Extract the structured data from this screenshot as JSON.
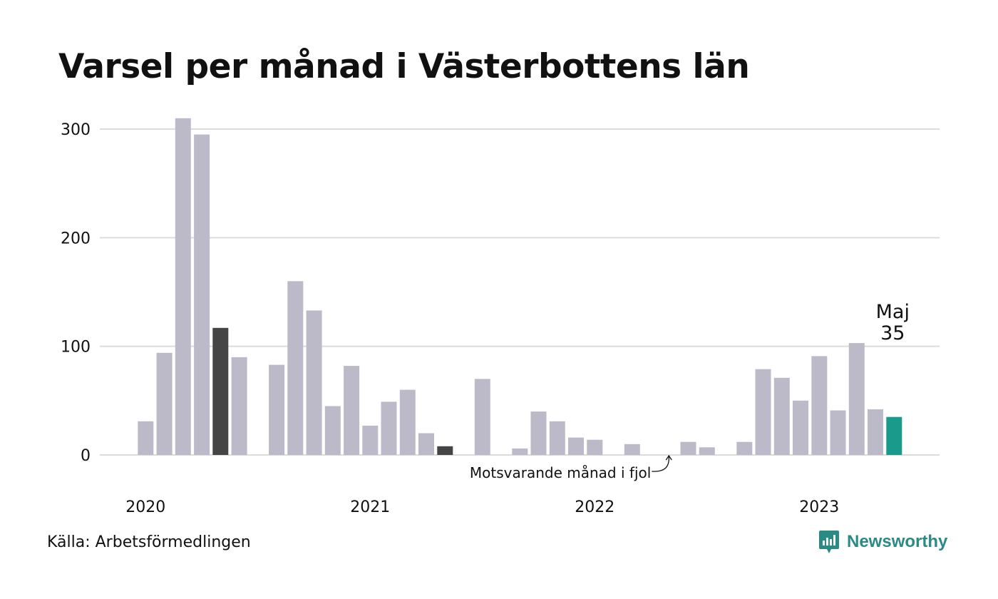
{
  "title": "Varsel per månad i Västerbottens län",
  "source": "Källa: Arbetsförmedlingen",
  "brand": "Newsworthy",
  "colors": {
    "bar": "#bcbac8",
    "bar_previous_year": "#454545",
    "bar_current": "#1a9a8a",
    "grid": "#dcdcdc",
    "brand": "#2a8a84"
  },
  "chart_data": {
    "type": "bar",
    "title": "Varsel per månad i Västerbottens län",
    "xlabel": "",
    "ylabel": "",
    "ylim": [
      0,
      320
    ],
    "yticks": [
      0,
      100,
      200,
      300
    ],
    "grid": true,
    "year_labels": [
      "2020",
      "2021",
      "2022",
      "2023"
    ],
    "categories": [
      "2020-01",
      "2020-02",
      "2020-03",
      "2020-04",
      "2020-05",
      "2020-06",
      "2020-07",
      "2020-08",
      "2020-09",
      "2020-10",
      "2020-11",
      "2020-12",
      "2021-01",
      "2021-02",
      "2021-03",
      "2021-04",
      "2021-05",
      "2021-06",
      "2021-07",
      "2021-08",
      "2021-09",
      "2021-10",
      "2021-11",
      "2021-12",
      "2022-01",
      "2022-02",
      "2022-03",
      "2022-04",
      "2022-05",
      "2022-06",
      "2022-07",
      "2022-08",
      "2022-09",
      "2022-10",
      "2022-11",
      "2022-12",
      "2023-01",
      "2023-02",
      "2023-03",
      "2023-04",
      "2023-05"
    ],
    "values": [
      31,
      94,
      310,
      295,
      117,
      90,
      0,
      83,
      160,
      133,
      45,
      82,
      27,
      49,
      60,
      20,
      8,
      0,
      70,
      0,
      6,
      40,
      31,
      16,
      14,
      0,
      10,
      0,
      0,
      12,
      7,
      0,
      12,
      79,
      71,
      50,
      91,
      41,
      103,
      42,
      35
    ],
    "highlight_previous_years": [
      "2020-05",
      "2021-05",
      "2022-05"
    ],
    "highlight_current": "2023-05",
    "annotations": {
      "current_label": "Maj",
      "current_value": "35",
      "previous_year_note": "Motsvarande månad i fjol"
    }
  }
}
